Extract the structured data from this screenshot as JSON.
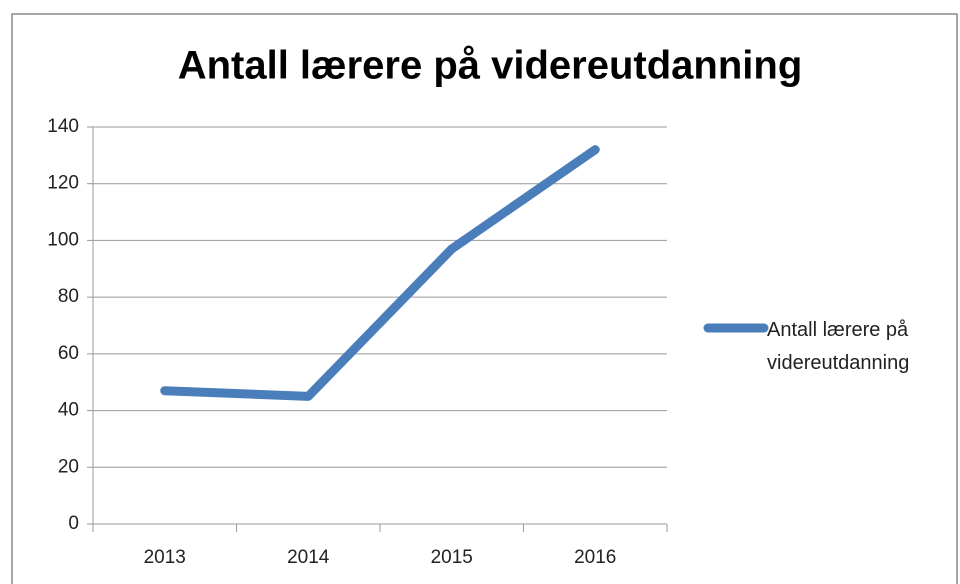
{
  "chart_data": {
    "type": "line",
    "title": "Antall lærere på videreutdanning",
    "categories": [
      "2013",
      "2014",
      "2015",
      "2016"
    ],
    "series": [
      {
        "name": "Antall lærere på videreutdanning",
        "color": "#4a7ebb",
        "values": [
          47,
          45,
          97,
          132
        ]
      }
    ],
    "ylim": [
      0,
      140
    ],
    "yticks": [
      0,
      20,
      40,
      60,
      80,
      100,
      120,
      140
    ],
    "grid": true,
    "legend": "right"
  }
}
